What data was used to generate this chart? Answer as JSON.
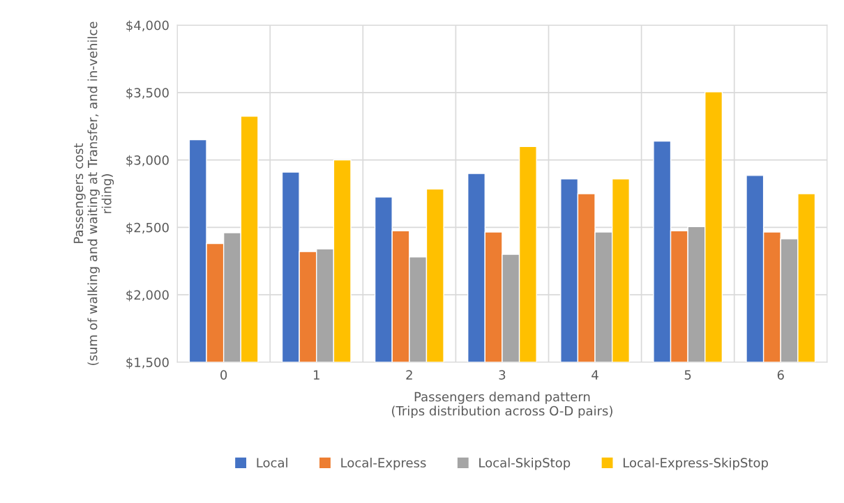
{
  "chart_data": {
    "type": "bar",
    "xlabel": "Passengers demand pattern\n(Trips distribution across O-D pairs)",
    "ylabel": "Passengers cost\n(sum of walking and waiting at Transfer, and in-vehilce\nriding)",
    "categories": [
      "0",
      "1",
      "2",
      "3",
      "4",
      "5",
      "6"
    ],
    "series": [
      {
        "name": "Local",
        "color": "#4472c4",
        "values": [
          3150,
          2910,
          2725,
          2900,
          2860,
          3140,
          2885
        ]
      },
      {
        "name": "Local-Express",
        "color": "#ed7d31",
        "values": [
          2380,
          2320,
          2475,
          2465,
          2750,
          2475,
          2465
        ]
      },
      {
        "name": "Local-SkipStop",
        "color": "#a5a5a5",
        "values": [
          2460,
          2340,
          2280,
          2300,
          2465,
          2505,
          2415
        ]
      },
      {
        "name": "Local-Express-SkipStop",
        "color": "#ffc000",
        "values": [
          3325,
          3000,
          2785,
          3100,
          2860,
          3505,
          2750
        ]
      }
    ],
    "ylim": [
      1500,
      4000
    ],
    "yticks": [
      {
        "value": 1500,
        "label": "$1,500"
      },
      {
        "value": 2000,
        "label": "$2,000"
      },
      {
        "value": 2500,
        "label": "$2,500"
      },
      {
        "value": 3000,
        "label": "$3,000"
      },
      {
        "value": 3500,
        "label": "$3,500"
      },
      {
        "value": 4000,
        "label": "$4,000"
      }
    ],
    "grid": true,
    "legend": "bottom"
  }
}
